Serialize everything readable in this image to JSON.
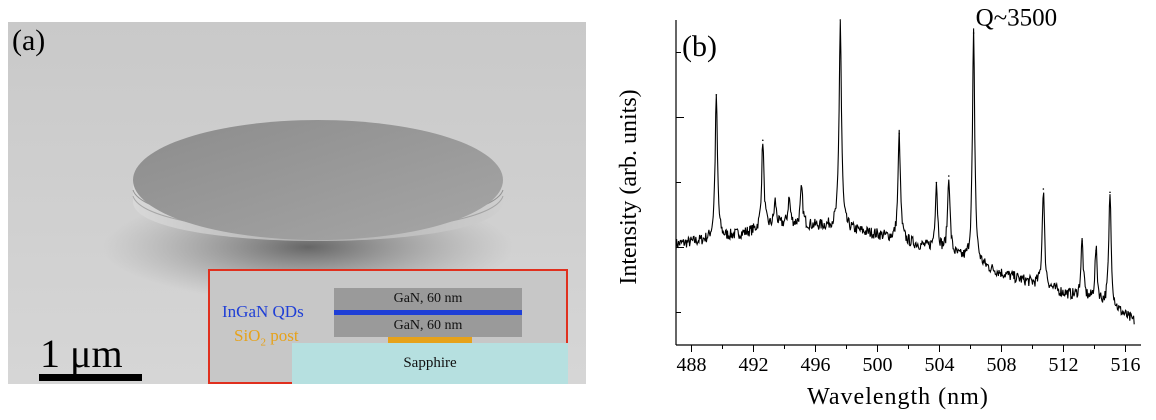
{
  "panel_a": {
    "tag": "(a)",
    "scale_bar_label": "1 μm",
    "inset": {
      "top_layer": "GaN, 60 nm",
      "bottom_layer": "GaN, 60 nm",
      "substrate": "Sapphire",
      "qd_label": "InGaN QDs",
      "post_label_main": "SiO",
      "post_label_sub": "2",
      "post_label_tail": " post",
      "colors": {
        "qd": "#1f3fd6",
        "post": "#e6a21a",
        "gan": "#9a9a9a",
        "sapphire": "#b6e0e0",
        "frame": "#e0301e"
      }
    }
  },
  "chart_data": {
    "type": "line",
    "panel_tag": "(b)",
    "xlabel": "Wavelength (nm)",
    "ylabel": "Intensity (arb. units)",
    "xlim": [
      487,
      517
    ],
    "ylim": [
      0,
      1
    ],
    "x_ticks": [
      488,
      492,
      496,
      500,
      504,
      508,
      512,
      516
    ],
    "y_ticks_labels": [],
    "annotation": {
      "text": "Q~3500",
      "x": 506.2,
      "y": 0.99
    },
    "baseline": [
      [
        487,
        0.31
      ],
      [
        490,
        0.33
      ],
      [
        494,
        0.37
      ],
      [
        497,
        0.365
      ],
      [
        500,
        0.34
      ],
      [
        504,
        0.29
      ],
      [
        508,
        0.22
      ],
      [
        512,
        0.16
      ],
      [
        515,
        0.12
      ],
      [
        517,
        0.06
      ]
    ],
    "peaks": [
      {
        "x": 489.6,
        "y": 0.77
      },
      {
        "x": 492.6,
        "y": 0.63
      },
      {
        "x": 493.4,
        "y": 0.44
      },
      {
        "x": 494.3,
        "y": 0.45
      },
      {
        "x": 495.1,
        "y": 0.48
      },
      {
        "x": 497.6,
        "y": 1.0
      },
      {
        "x": 501.4,
        "y": 0.65
      },
      {
        "x": 503.8,
        "y": 0.5
      },
      {
        "x": 504.6,
        "y": 0.52
      },
      {
        "x": 506.2,
        "y": 0.96
      },
      {
        "x": 510.7,
        "y": 0.48
      },
      {
        "x": 513.2,
        "y": 0.32
      },
      {
        "x": 514.1,
        "y": 0.29
      },
      {
        "x": 515.0,
        "y": 0.47
      }
    ],
    "colors": {
      "line": "#000000"
    }
  }
}
